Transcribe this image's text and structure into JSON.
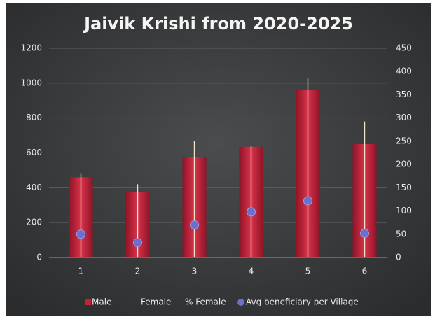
{
  "chart_data": {
    "type": "bar",
    "title": "Jaivik Krishi from 2020-2025",
    "categories": [
      "1",
      "2",
      "3",
      "4",
      "5",
      "6"
    ],
    "series": [
      {
        "name": "Male",
        "color": "#c42038",
        "values": [
          460,
          375,
          575,
          635,
          960,
          650
        ]
      },
      {
        "name": "Female",
        "color": "#f3e6c6",
        "values": [
          480,
          420,
          670,
          640,
          1030,
          780
        ]
      },
      {
        "name": "% Female",
        "color": null,
        "values": [
          null,
          null,
          null,
          null,
          null,
          null
        ]
      },
      {
        "name": "Avg beneficiary per Village",
        "color": "#6b70cc",
        "axis": "y2",
        "values": [
          50,
          32,
          70,
          98,
          122,
          52
        ]
      }
    ],
    "ylim": [
      0,
      1200
    ],
    "yticks": [
      0,
      200,
      400,
      600,
      800,
      1000,
      1200
    ],
    "y2lim": [
      0,
      450
    ],
    "y2ticks": [
      0,
      50,
      100,
      150,
      200,
      250,
      300,
      350,
      400,
      450
    ],
    "grid": true,
    "legend": "bottom"
  }
}
